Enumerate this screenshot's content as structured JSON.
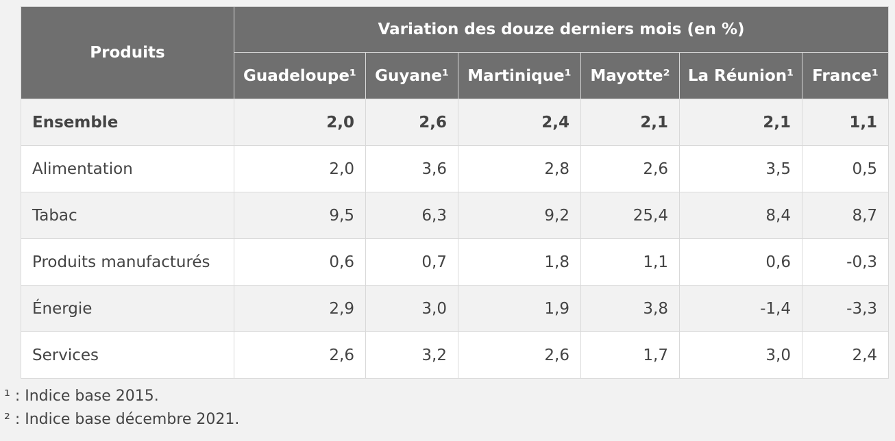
{
  "table": {
    "header_products": "Produits",
    "header_group": "Variation des douze derniers mois (en %)",
    "columns": [
      "Guadeloupe¹",
      "Guyane¹",
      "Martinique¹",
      "Mayotte²",
      "La Réunion¹",
      "France¹"
    ],
    "rows": [
      {
        "label": "Ensemble",
        "values": [
          "2,0",
          "2,6",
          "2,4",
          "2,1",
          "2,1",
          "1,1"
        ]
      },
      {
        "label": "Alimentation",
        "values": [
          "2,0",
          "3,6",
          "2,8",
          "2,6",
          "3,5",
          "0,5"
        ]
      },
      {
        "label": "Tabac",
        "values": [
          "9,5",
          "6,3",
          "9,2",
          "25,4",
          "8,4",
          "8,7"
        ]
      },
      {
        "label": "Produits manufacturés",
        "values": [
          "0,6",
          "0,7",
          "1,8",
          "1,1",
          "0,6",
          "-0,3"
        ]
      },
      {
        "label": "Énergie",
        "values": [
          "2,9",
          "3,0",
          "1,9",
          "3,8",
          "-1,4",
          "-3,3"
        ]
      },
      {
        "label": "Services",
        "values": [
          "2,6",
          "3,2",
          "2,6",
          "1,7",
          "3,0",
          "2,4"
        ]
      }
    ]
  },
  "footnotes": [
    "¹ : Indice base 2015.",
    "² : Indice base décembre 2021."
  ]
}
